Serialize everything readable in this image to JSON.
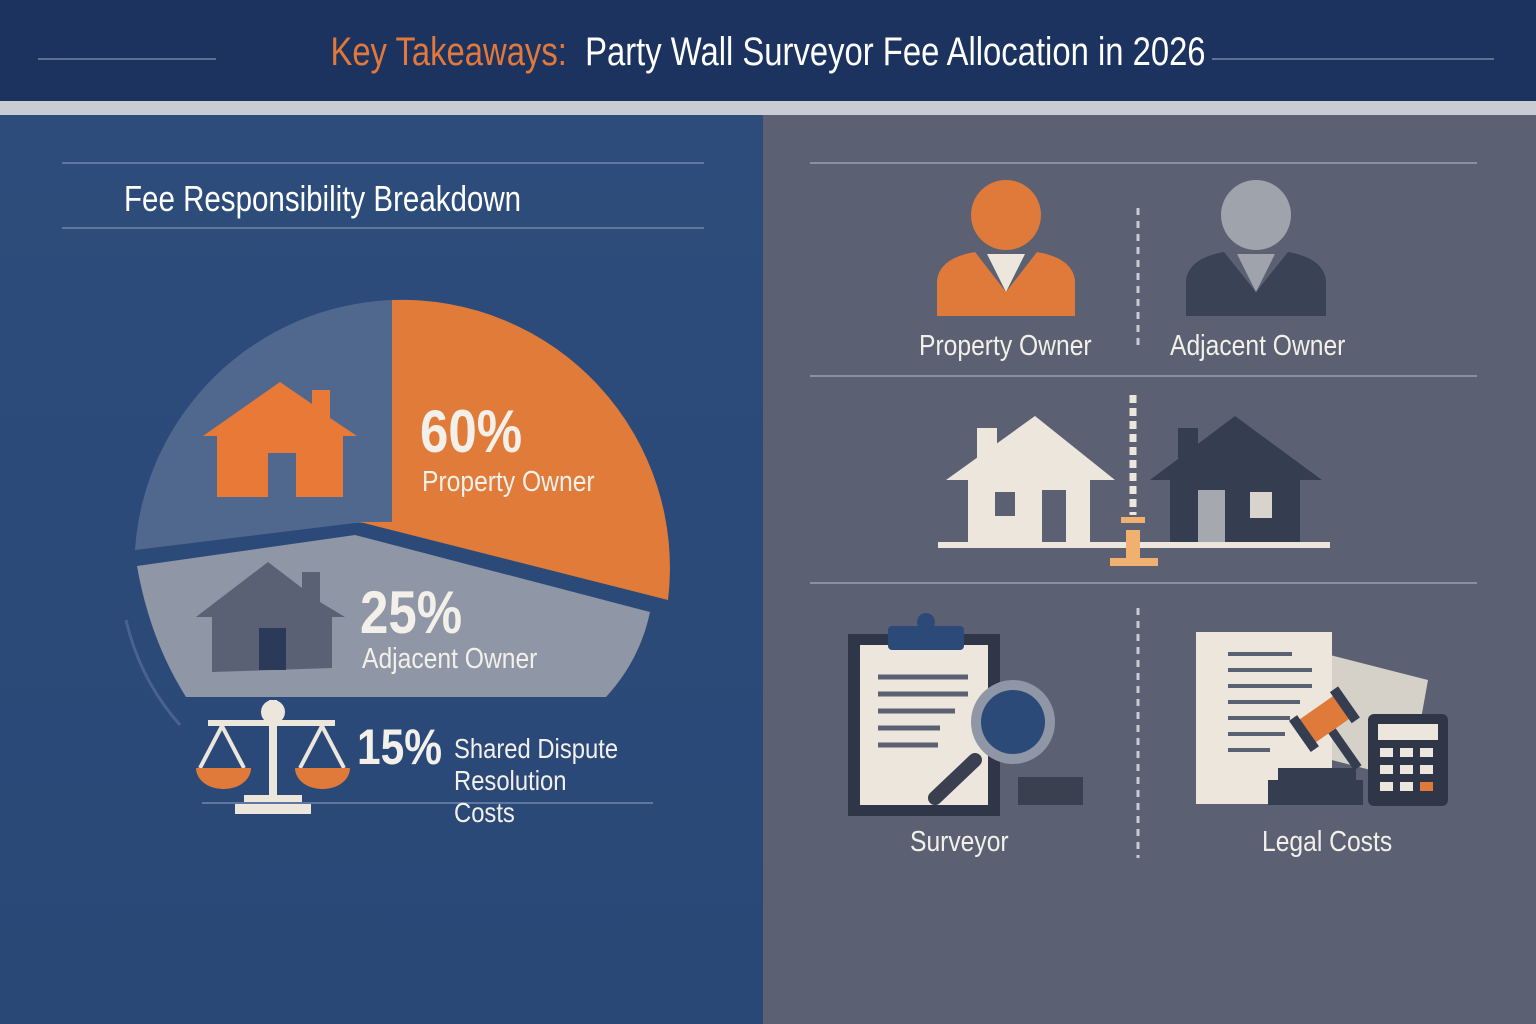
{
  "header": {
    "title_key": "Key Takeaways:",
    "title_main": "Party Wall Surveyor Fee Allocation in 2026"
  },
  "left": {
    "subtitle": "Fee Responsibility Breakdown"
  },
  "chart_data": {
    "type": "pie",
    "title": "Fee Responsibility Breakdown",
    "categories": [
      "Property Owner",
      "Adjacent Owner",
      "Shared Dispute Resolution Costs"
    ],
    "values": [
      60,
      25,
      15
    ],
    "labels": [
      "60%",
      "25%",
      "15%"
    ],
    "colors": [
      "#e07a3a",
      "#8f96a6",
      "#f0ebe2"
    ]
  },
  "right": {
    "people": [
      {
        "label": "Property Owner",
        "color": "#e07a3a"
      },
      {
        "label": "Adjacent Owner",
        "color": "#3a4256"
      }
    ],
    "services": [
      {
        "label": "Surveyor"
      },
      {
        "label": "Legal Costs"
      }
    ]
  }
}
